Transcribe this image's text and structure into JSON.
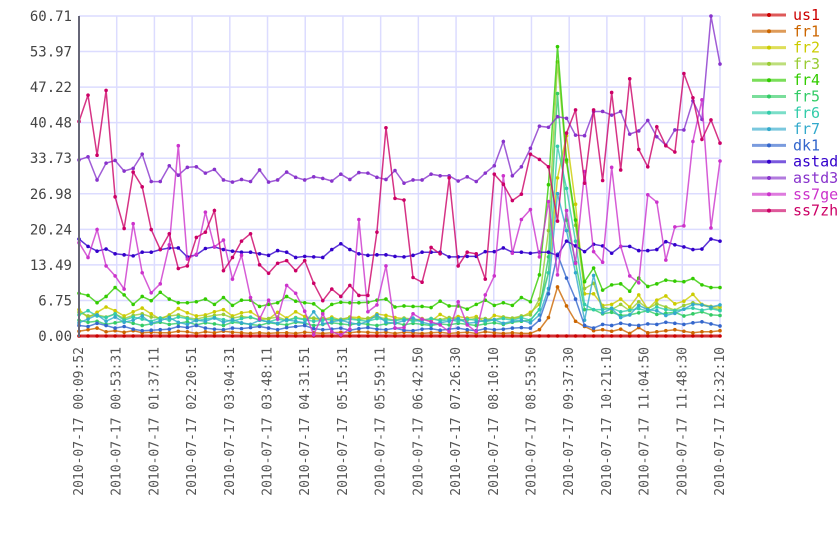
{
  "chart_data": {
    "type": "line",
    "title": "",
    "xlabel": "",
    "ylabel": "",
    "ylim": [
      0,
      60.71
    ],
    "grid": true,
    "legend_placement": "right",
    "y_ticks": [
      "0.00",
      "6.75",
      "13.49",
      "20.24",
      "26.98",
      "33.73",
      "40.48",
      "47.22",
      "53.97",
      "60.71"
    ],
    "x_ticks": [
      "2010-07-17 00:09:52",
      "2010-07-17 00:53:31",
      "2010-07-17 01:37:11",
      "2010-07-17 02:20:51",
      "2010-07-17 03:04:31",
      "2010-07-17 03:48:11",
      "2010-07-17 04:31:51",
      "2010-07-17 05:15:31",
      "2010-07-17 05:59:11",
      "2010-07-17 06:42:50",
      "2010-07-17 07:26:30",
      "2010-07-17 08:10:10",
      "2010-07-17 08:53:50",
      "2010-07-17 09:37:30",
      "2010-07-17 10:21:10",
      "2010-07-17 11:04:50",
      "2010-07-17 11:48:30",
      "2010-07-17 12:32:10"
    ],
    "series": [
      {
        "name": "us1",
        "color": "#cc0000",
        "values": [
          0,
          0,
          0,
          0,
          0,
          0,
          0,
          0,
          0,
          0,
          0,
          0,
          0,
          0,
          0,
          0,
          0,
          0,
          0,
          0,
          0,
          0,
          0,
          0,
          0,
          0,
          0,
          0,
          0,
          0,
          0,
          0,
          0,
          0,
          0,
          0,
          0,
          0,
          0,
          0,
          0,
          0,
          0,
          0,
          0,
          0,
          0,
          0,
          0,
          0,
          0,
          0,
          0,
          0,
          0,
          0,
          0,
          0,
          0,
          0,
          0,
          0,
          0,
          0,
          0,
          0,
          0,
          0,
          0,
          0,
          0,
          0
        ]
      },
      {
        "name": "fr1",
        "color": "#cc6600",
        "values": [
          0.9,
          1.2,
          1.5,
          0.8,
          1.0,
          0.7,
          1.0,
          0.6,
          0.7,
          0.6,
          0.6,
          0.9,
          0.8,
          0.5,
          0.8,
          0.6,
          0.9,
          0.7,
          0.6,
          0.5,
          0.6,
          0.5,
          0.6,
          0.6,
          0.5,
          0.7,
          0.6,
          0.5,
          0.6,
          0.7,
          0.6,
          0.8,
          0.7,
          0.6,
          0.7,
          0.5,
          0.7,
          0.6,
          0.5,
          0.6,
          0.7,
          0.5,
          0.6,
          0.7,
          0.5,
          0.8,
          0.6,
          0.5,
          0.6,
          0.5,
          0.5,
          1.2,
          3.5,
          9.3,
          5.7,
          2.8,
          1.8,
          1.0,
          1.2,
          0.9,
          1.3,
          0.5,
          1.6,
          0.6,
          0.8,
          1.0,
          1.2,
          0.9,
          0.6,
          0.8,
          0.8,
          1.0
        ]
      },
      {
        "name": "fr2",
        "color": "#cccc00",
        "values": [
          5.0,
          3.5,
          4.5,
          5.5,
          4.8,
          3.8,
          4.6,
          5.3,
          4.2,
          3.2,
          4.0,
          5.2,
          4.4,
          3.8,
          4.0,
          4.6,
          5.0,
          3.8,
          4.4,
          4.6,
          3.5,
          3.2,
          4.5,
          3.4,
          4.6,
          3.7,
          3.3,
          3.1,
          3.6,
          3.0,
          3.6,
          3.5,
          3.2,
          4.2,
          3.9,
          3.5,
          3.3,
          2.9,
          3.3,
          2.8,
          4.1,
          3.2,
          3.7,
          3.4,
          3.7,
          2.6,
          3.9,
          3.6,
          3.3,
          3.6,
          4.5,
          6,
          12,
          30,
          38,
          25,
          8,
          8,
          5.8,
          6.0,
          7.0,
          5.5,
          7.8,
          5.1,
          6.8,
          7.6,
          6.1,
          6.6,
          7.9,
          6.0,
          5.6,
          5.5
        ]
      },
      {
        "name": "fr3",
        "color": "#99cc33",
        "values": [
          4.5,
          3.8,
          4.0,
          3.6,
          4.2,
          3.3,
          3.9,
          4.2,
          3.6,
          3.4,
          3.8,
          4.0,
          3.5,
          3.2,
          3.6,
          3.9,
          4.1,
          3.4,
          3.7,
          3.5,
          3.1,
          3.3,
          3.6,
          3.0,
          3.5,
          3.2,
          3.4,
          3.3,
          3.0,
          3.2,
          3.5,
          3.1,
          3.4,
          3.6,
          3.3,
          3.0,
          3.4,
          3.2,
          3.0,
          3.3,
          3.1,
          3.5,
          3.2,
          3.0,
          3.4,
          3.3,
          3.1,
          3.6,
          3.4,
          3.8,
          4,
          7,
          20,
          52,
          33,
          21,
          9,
          10,
          5.5,
          5.0,
          6.0,
          4.8,
          6.5,
          5.2,
          6.1,
          5.5,
          4.9,
          5.8,
          6.3,
          5.9,
          5.4,
          5.0
        ]
      },
      {
        "name": "fr4",
        "color": "#33cc00",
        "values": [
          8.1,
          7.7,
          6.3,
          7.5,
          9.2,
          7.8,
          6.0,
          7.5,
          6.7,
          8.3,
          7.0,
          6.3,
          6.3,
          6.5,
          7.0,
          6.0,
          7.3,
          5.8,
          6.8,
          6.8,
          5.6,
          6.0,
          6.3,
          7.5,
          6.6,
          6.3,
          6.1,
          4.7,
          6.0,
          6.4,
          6.3,
          6.3,
          6.4,
          6.8,
          7.0,
          5.5,
          5.7,
          5.6,
          5.6,
          5.4,
          6.6,
          5.7,
          5.7,
          5.1,
          6.0,
          6.8,
          5.8,
          6.3,
          5.8,
          7.3,
          6.5,
          11.6,
          28.7,
          54.9,
          33.4,
          22.0,
          10.3,
          12.9,
          8.7,
          9.7,
          9.9,
          8.5,
          11.0,
          9.4,
          9.9,
          10.6,
          10.4,
          10.3,
          10.9,
          9.7,
          9.2,
          9.2
        ]
      },
      {
        "name": "fr5",
        "color": "#33cc66",
        "values": [
          3.0,
          2.6,
          2.8,
          2.2,
          2.5,
          2.8,
          2.4,
          2.0,
          2.3,
          2.6,
          2.2,
          2.4,
          2.7,
          2.1,
          2.5,
          2.3,
          2.0,
          2.6,
          2.4,
          2.2,
          2.0,
          2.5,
          2.3,
          2.1,
          2.6,
          2.4,
          2.0,
          2.2,
          2.5,
          2.3,
          2.1,
          2.4,
          2.2,
          2.0,
          2.3,
          2.5,
          2.1,
          2.4,
          2.2,
          2.0,
          2.3,
          2.1,
          2.4,
          2.2,
          2.0,
          2.3,
          2.5,
          2.2,
          2.6,
          2.8,
          3,
          5,
          15,
          46,
          22,
          14,
          5,
          5,
          4.2,
          4.5,
          3.9,
          4.0,
          4.4,
          4.8,
          4.1,
          4.3,
          4.5,
          3.8,
          4.2,
          4.6,
          4.0,
          3.9
        ]
      },
      {
        "name": "fr6",
        "color": "#33ccaa",
        "values": [
          4.0,
          4.8,
          3.8,
          3.5,
          4.2,
          3.0,
          3.6,
          3.2,
          2.8,
          3.4,
          3.0,
          3.6,
          3.3,
          2.9,
          3.2,
          3.5,
          3.1,
          2.8,
          3.3,
          3.6,
          3.0,
          2.7,
          3.2,
          2.9,
          3.4,
          3.1,
          2.8,
          3.0,
          3.3,
          2.9,
          3.2,
          3.0,
          2.8,
          3.3,
          3.1,
          2.9,
          3.2,
          2.8,
          3.0,
          3.3,
          2.9,
          3.1,
          2.8,
          3.2,
          3.0,
          2.7,
          3.1,
          3.3,
          3.0,
          3.5,
          3,
          5,
          12,
          36,
          28,
          18,
          6,
          5,
          5.0,
          5.3,
          4.6,
          4.9,
          5.2,
          4.7,
          5.5,
          5.0,
          4.8,
          5.1,
          5.3,
          4.9,
          5.2,
          4.8
        ]
      },
      {
        "name": "fr7",
        "color": "#33aacc",
        "values": [
          2.5,
          3.2,
          4.0,
          2.8,
          3.6,
          2.6,
          3.0,
          3.8,
          2.4,
          2.9,
          3.5,
          2.6,
          2.2,
          3.0,
          2.8,
          3.4,
          2.6,
          3.1,
          2.5,
          2.2,
          3.0,
          2.7,
          2.4,
          3.1,
          2.8,
          2.5,
          4.6,
          2.3,
          2.7,
          3.0,
          2.5,
          2.2,
          2.8,
          4.0,
          2.6,
          2.4,
          2.9,
          3.4,
          2.6,
          2.2,
          2.5,
          2.8,
          3.3,
          2.4,
          2.6,
          3.0,
          3.1,
          2.4,
          2.8,
          3.0,
          2.5,
          4,
          9,
          27,
          20,
          12,
          3,
          11.5,
          4.4,
          5.2,
          3.5,
          4.0,
          5.8,
          5.0,
          4.8,
          3.9,
          4.3,
          5.1,
          6.0,
          5.9,
          5.5,
          5.9
        ]
      },
      {
        "name": "dk1",
        "color": "#3366cc",
        "values": [
          2.0,
          1.8,
          2.4,
          2.0,
          1.5,
          1.8,
          1.3,
          1.0,
          1.1,
          1.2,
          1.3,
          1.8,
          1.6,
          2.0,
          1.5,
          1.3,
          1.2,
          1.5,
          1.4,
          1.6,
          1.8,
          1.5,
          1.2,
          1.6,
          1.8,
          2.0,
          1.4,
          1.2,
          1.3,
          1.5,
          1.1,
          1.4,
          1.6,
          1.3,
          1.2,
          1.5,
          1.1,
          1.0,
          1.3,
          1.4,
          1.1,
          1.3,
          1.5,
          1.2,
          1.0,
          1.4,
          1.2,
          1.3,
          1.5,
          1.6,
          1.5,
          3,
          8,
          15.5,
          11,
          7,
          2,
          1.5,
          2.2,
          2.0,
          2.4,
          2.1,
          2.0,
          2.3,
          2.2,
          2.6,
          2.4,
          2.2,
          2.5,
          2.7,
          2.3,
          1.9
        ]
      },
      {
        "name": "astad",
        "color": "#3300cc",
        "values": [
          18.4,
          17.0,
          16.1,
          16.5,
          15.6,
          15.4,
          15.2,
          15.9,
          15.9,
          16.4,
          16.7,
          16.7,
          15.0,
          15.4,
          16.6,
          16.9,
          16.4,
          16.1,
          15.9,
          15.9,
          15.6,
          15.3,
          16.2,
          15.9,
          14.9,
          15.1,
          15.0,
          14.9,
          16.4,
          17.5,
          16.4,
          15.6,
          15.3,
          15.4,
          15.4,
          15.1,
          15.0,
          15.3,
          15.9,
          15.9,
          15.9,
          15.0,
          15.0,
          15.1,
          15.1,
          16.0,
          16.0,
          16.7,
          15.9,
          15.9,
          15.7,
          15.9,
          15.9,
          15.3,
          18.0,
          17.1,
          16.0,
          17.4,
          17.1,
          15.7,
          17.0,
          17.0,
          16.2,
          16.2,
          16.4,
          17.9,
          17.3,
          16.9,
          16.4,
          16.5,
          18.4,
          18.0
        ]
      },
      {
        "name": "astd3",
        "color": "#8833cc",
        "values": [
          33.4,
          34.0,
          29.6,
          32.8,
          33.3,
          31.3,
          31.8,
          34.5,
          29.3,
          29.3,
          32.3,
          30.5,
          32.0,
          32.1,
          30.9,
          31.6,
          29.6,
          29.2,
          29.7,
          29.3,
          31.5,
          29.2,
          29.6,
          31.1,
          30.1,
          29.6,
          30.2,
          29.9,
          29.4,
          30.7,
          29.7,
          31.0,
          30.9,
          30.1,
          29.7,
          31.4,
          29.0,
          29.6,
          29.6,
          30.7,
          30.4,
          30.4,
          29.4,
          30.2,
          29.3,
          30.9,
          32.3,
          36.9,
          30.4,
          32.1,
          35.6,
          39.8,
          39.6,
          41.6,
          41.3,
          38.1,
          38.0,
          42.6,
          42.6,
          41.9,
          42.6,
          38.3,
          38.9,
          40.9,
          37.8,
          36.2,
          39.1,
          39.1,
          44.6,
          41.1,
          60.7,
          51.6
        ]
      },
      {
        "name": "ss7ge",
        "color": "#cc33cc",
        "values": [
          17.7,
          14.9,
          20.2,
          13.3,
          11.4,
          8.9,
          21.3,
          12.0,
          8.2,
          9.9,
          17.3,
          36.1,
          14.6,
          15.5,
          23.5,
          16.9,
          18.2,
          10.8,
          15.3,
          7.3,
          3.2,
          6.8,
          3.2,
          9.6,
          8.1,
          4.7,
          0.2,
          4.2,
          0.8,
          0.2,
          1.3,
          22.1,
          4.6,
          5.9,
          13.3,
          1.5,
          1.6,
          4.2,
          3.2,
          2.7,
          2.1,
          0.8,
          6.5,
          2.1,
          0.8,
          7.8,
          11.4,
          30.4,
          15.7,
          22.1,
          24.0,
          15.0,
          25.5,
          11.6,
          23.8,
          13.8,
          31.2,
          16.0,
          14.0,
          32.0,
          17.0,
          11.4,
          10.1,
          26.8,
          25.4,
          14.4,
          20.7,
          20.9,
          36.9,
          44.8,
          20.5,
          33.2
        ]
      },
      {
        "name": "ss7zh",
        "color": "#cc0066",
        "values": [
          40.7,
          45.7,
          34.3,
          46.6,
          26.4,
          20.4,
          31.1,
          28.3,
          20.2,
          16.4,
          19.4,
          12.8,
          13.3,
          18.7,
          19.7,
          23.8,
          12.4,
          14.9,
          18.0,
          19.4,
          13.5,
          11.9,
          13.8,
          14.3,
          12.4,
          14.3,
          10.0,
          6.7,
          8.9,
          7.5,
          9.6,
          7.7,
          7.7,
          19.7,
          39.5,
          26.1,
          25.8,
          11.1,
          10.2,
          16.8,
          15.6,
          30.0,
          13.3,
          15.9,
          15.6,
          10.8,
          30.7,
          28.8,
          25.7,
          26.9,
          34.5,
          33.5,
          32.1,
          21.8,
          38.5,
          42.9,
          29.0,
          42.9,
          29.5,
          46.2,
          31.5,
          48.8,
          35.4,
          32.1,
          39.7,
          36.1,
          34.9,
          49.8,
          45.2,
          37.3,
          41.0,
          36.6
        ]
      }
    ]
  }
}
